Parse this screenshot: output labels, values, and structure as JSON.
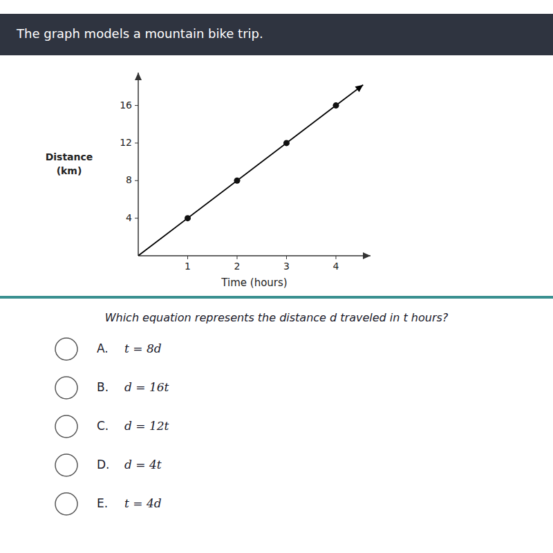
{
  "chart_data": {
    "type": "line",
    "title": "The graph models a mountain bike trip.",
    "xlabel": "Time (hours)",
    "ylabel": [
      "Distance",
      "(km)"
    ],
    "xlim": [
      0,
      4.7
    ],
    "ylim": [
      0,
      19.5
    ],
    "xticks": [
      1,
      2,
      3,
      4
    ],
    "yticks": [
      4,
      8,
      12,
      16
    ],
    "grid": false,
    "series": [
      {
        "type": "line",
        "color": "#000000",
        "x": [
          0,
          4.0,
          4.55
        ],
        "values": [
          0,
          16.0,
          18.2
        ]
      },
      {
        "type": "scatter",
        "color": "#111111",
        "x": [
          1,
          2,
          3,
          4
        ],
        "values": [
          4,
          8,
          12,
          16
        ]
      }
    ],
    "annotations": [
      "Which equation represents the distance d traveled in t hours?",
      "A.",
      "t = 8d",
      "B.",
      "d = 16t",
      "C.",
      "d = 12t",
      "D.",
      "d = 4t",
      "E.",
      "t = 4d"
    ]
  }
}
